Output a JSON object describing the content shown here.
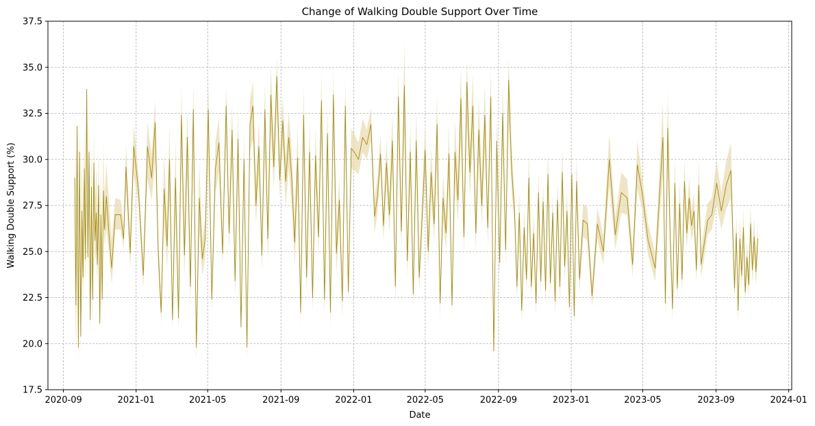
{
  "chart_data": {
    "type": "line",
    "title": "Change of Walking Double Support Over Time",
    "xlabel": "Date",
    "ylabel": "Walking Double Support (%)",
    "xlim": [
      "2020-08-06",
      "2024-01-06"
    ],
    "ylim": [
      17.5,
      37.5
    ],
    "grid": true,
    "line_color": "#a68a0d",
    "band_color": "#e8dcb0",
    "x_ticks": [
      "2020-09-01",
      "2021-01-01",
      "2021-05-01",
      "2021-09-01",
      "2022-01-01",
      "2022-05-01",
      "2022-09-01",
      "2023-01-01",
      "2023-05-01",
      "2023-09-01",
      "2024-01-01"
    ],
    "x_tick_labels": [
      "2020-09",
      "2021-01",
      "2021-05",
      "2021-09",
      "2022-01",
      "2022-05",
      "2022-09",
      "2023-01",
      "2023-05",
      "2023-09",
      "2024-01"
    ],
    "y_ticks": [
      17.5,
      20.0,
      22.5,
      25.0,
      27.5,
      30.0,
      32.5,
      35.0,
      37.5
    ],
    "y_tick_labels": [
      "17.5",
      "20.0",
      "22.5",
      "25.0",
      "27.5",
      "30.0",
      "32.5",
      "35.0",
      "37.5"
    ],
    "series": [
      {
        "x": [
          "2020-09-20",
          "2020-09-22",
          "2020-09-24",
          "2020-09-26",
          "2020-09-28",
          "2020-09-30",
          "2020-10-02",
          "2020-10-04",
          "2020-10-06",
          "2020-10-08",
          "2020-10-10",
          "2020-10-12",
          "2020-10-14",
          "2020-10-16",
          "2020-10-18",
          "2020-10-20",
          "2020-10-22",
          "2020-10-24",
          "2020-10-26",
          "2020-10-28",
          "2020-10-30",
          "2020-11-01",
          "2020-11-03",
          "2020-11-05",
          "2020-11-07",
          "2020-11-09",
          "2020-11-12",
          "2020-11-16",
          "2020-11-21",
          "2020-11-27",
          "2020-12-06",
          "2020-12-11",
          "2020-12-15",
          "2020-12-22",
          "2020-12-28",
          "2021-01-05",
          "2021-01-13",
          "2021-01-20",
          "2021-01-27",
          "2021-02-02",
          "2021-02-07",
          "2021-02-12",
          "2021-02-17",
          "2021-02-22",
          "2021-02-26",
          "2021-03-03",
          "2021-03-08",
          "2021-03-13",
          "2021-03-18",
          "2021-03-23",
          "2021-03-28",
          "2021-04-02",
          "2021-04-07",
          "2021-04-12",
          "2021-04-17",
          "2021-04-22",
          "2021-04-27",
          "2021-05-02",
          "2021-05-08",
          "2021-05-14",
          "2021-05-20",
          "2021-05-26",
          "2021-06-01",
          "2021-06-06",
          "2021-06-11",
          "2021-06-16",
          "2021-06-21",
          "2021-06-26",
          "2021-07-01",
          "2021-07-06",
          "2021-07-11",
          "2021-07-16",
          "2021-07-21",
          "2021-07-26",
          "2021-07-31",
          "2021-08-05",
          "2021-08-10",
          "2021-08-15",
          "2021-08-20",
          "2021-08-25",
          "2021-08-30",
          "2021-09-04",
          "2021-09-09",
          "2021-09-14",
          "2021-09-19",
          "2021-09-24",
          "2021-09-29",
          "2021-10-04",
          "2021-10-09",
          "2021-10-14",
          "2021-10-19",
          "2021-10-24",
          "2021-10-29",
          "2021-11-03",
          "2021-11-08",
          "2021-11-13",
          "2021-11-18",
          "2021-11-23",
          "2021-11-28",
          "2021-12-03",
          "2021-12-08",
          "2021-12-13",
          "2021-12-18",
          "2021-12-23",
          "2021-12-28",
          "2022-01-02",
          "2022-01-09",
          "2022-01-16",
          "2022-01-23",
          "2022-01-30",
          "2022-02-05",
          "2022-02-10",
          "2022-02-15",
          "2022-02-20",
          "2022-02-25",
          "2022-03-02",
          "2022-03-07",
          "2022-03-12",
          "2022-03-17",
          "2022-03-22",
          "2022-03-27",
          "2022-04-01",
          "2022-04-06",
          "2022-04-11",
          "2022-04-16",
          "2022-04-21",
          "2022-04-26",
          "2022-05-01",
          "2022-05-06",
          "2022-05-11",
          "2022-05-16",
          "2022-05-21",
          "2022-05-26",
          "2022-05-31",
          "2022-06-05",
          "2022-06-10",
          "2022-06-15",
          "2022-06-20",
          "2022-06-25",
          "2022-06-30",
          "2022-07-05",
          "2022-07-10",
          "2022-07-15",
          "2022-07-20",
          "2022-07-25",
          "2022-07-30",
          "2022-08-04",
          "2022-08-09",
          "2022-08-14",
          "2022-08-19",
          "2022-08-24",
          "2022-08-29",
          "2022-09-03",
          "2022-09-08",
          "2022-09-13",
          "2022-09-18",
          "2022-09-23",
          "2022-09-28",
          "2022-10-02",
          "2022-10-06",
          "2022-10-10",
          "2022-10-14",
          "2022-10-18",
          "2022-10-22",
          "2022-10-26",
          "2022-10-30",
          "2022-11-03",
          "2022-11-07",
          "2022-11-11",
          "2022-11-15",
          "2022-11-19",
          "2022-11-23",
          "2022-11-27",
          "2022-12-01",
          "2022-12-05",
          "2022-12-09",
          "2022-12-13",
          "2022-12-17",
          "2022-12-21",
          "2022-12-25",
          "2022-12-29",
          "2023-01-02",
          "2023-01-06",
          "2023-01-10",
          "2023-01-15",
          "2023-01-21",
          "2023-01-28",
          "2023-02-05",
          "2023-02-14",
          "2023-02-24",
          "2023-03-06",
          "2023-03-16",
          "2023-03-26",
          "2023-04-05",
          "2023-04-14",
          "2023-04-22",
          "2023-04-30",
          "2023-05-10",
          "2023-05-22",
          "2023-06-04",
          "2023-06-08",
          "2023-06-12",
          "2023-06-16",
          "2023-06-20",
          "2023-06-24",
          "2023-06-28",
          "2023-07-02",
          "2023-07-06",
          "2023-07-10",
          "2023-07-14",
          "2023-07-18",
          "2023-07-22",
          "2023-07-26",
          "2023-07-30",
          "2023-08-03",
          "2023-08-07",
          "2023-08-12",
          "2023-08-18",
          "2023-08-25",
          "2023-09-02",
          "2023-09-10",
          "2023-09-18",
          "2023-09-26",
          "2023-10-02",
          "2023-10-05",
          "2023-10-08",
          "2023-10-11",
          "2023-10-14",
          "2023-10-17",
          "2023-10-20",
          "2023-10-23",
          "2023-10-26",
          "2023-10-29",
          "2023-11-01",
          "2023-11-04",
          "2023-11-07",
          "2023-11-10"
        ],
        "y": [
          29.0,
          22.1,
          31.8,
          19.8,
          30.4,
          20.4,
          27.2,
          23.6,
          29.5,
          24.6,
          33.8,
          24.7,
          30.4,
          21.3,
          28.5,
          22.4,
          29.8,
          25.6,
          27.1,
          24.3,
          28.6,
          21.1,
          27.0,
          22.4,
          28.3,
          26.2,
          28.0,
          26.1,
          24.1,
          27.0,
          27.0,
          25.7,
          29.6,
          24.9,
          30.7,
          28.3,
          23.7,
          30.7,
          29.0,
          32.0,
          25.0,
          21.7,
          28.4,
          25.3,
          30.0,
          21.3,
          29.0,
          21.4,
          32.4,
          24.8,
          31.2,
          23.1,
          32.7,
          19.8,
          27.9,
          24.6,
          25.7,
          32.7,
          22.4,
          29.5,
          30.9,
          24.9,
          32.9,
          26.0,
          31.6,
          23.4,
          31.1,
          20.9,
          30.0,
          19.8,
          31.9,
          32.9,
          27.5,
          30.7,
          24.8,
          32.7,
          25.7,
          33.5,
          29.6,
          34.5,
          28.9,
          32.1,
          28.8,
          31.2,
          29.0,
          25.5,
          30.1,
          21.7,
          32.4,
          23.6,
          30.4,
          22.5,
          30.2,
          25.8,
          33.2,
          22.4,
          31.4,
          21.7,
          33.5,
          24.9,
          27.8,
          22.3,
          32.9,
          22.8,
          30.6,
          30.4,
          30.0,
          31.2,
          30.8,
          31.9,
          26.9,
          28.0,
          30.3,
          26.4,
          29.8,
          27.0,
          31.0,
          23.1,
          33.4,
          26.1,
          34.0,
          24.5,
          30.4,
          22.7,
          31.0,
          23.6,
          27.0,
          30.5,
          25.0,
          29.3,
          26.5,
          31.9,
          22.2,
          27.9,
          26.0,
          30.3,
          22.1,
          30.4,
          27.8,
          33.3,
          25.8,
          34.2,
          29.3,
          32.9,
          26.0,
          31.6,
          27.5,
          32.4,
          26.3,
          33.4,
          19.6,
          31.0,
          24.4,
          32.5,
          25.1,
          34.3,
          29.5,
          27.1,
          23.1,
          27.1,
          21.8,
          26.3,
          23.5,
          29.0,
          23.1,
          26.0,
          22.2,
          28.2,
          23.4,
          27.7,
          22.9,
          29.2,
          23.3,
          27.1,
          22.3,
          27.8,
          23.1,
          29.3,
          24.2,
          27.2,
          22.0,
          29.2,
          21.5,
          28.8,
          23.5,
          26.7,
          26.5,
          22.6,
          26.5,
          25.0,
          30.0,
          25.9,
          28.2,
          27.9,
          24.3,
          29.7,
          28.2,
          25.6,
          24.1,
          31.2,
          22.2,
          31.7,
          25.9,
          21.9,
          28.7,
          23.0,
          27.6,
          23.5,
          28.8,
          26.0,
          27.9,
          26.4,
          27.2,
          24.0,
          28.6,
          24.3,
          25.4,
          26.7,
          27.0,
          28.7,
          27.2,
          28.6,
          29.4,
          23.0,
          26.0,
          21.8,
          25.7,
          23.7,
          26.3,
          22.8,
          24.7,
          23.2,
          26.5,
          24.0,
          25.8,
          23.9,
          25.7
        ],
        "lower": [
          24.9,
          19.1,
          28.0,
          18.9,
          26.8,
          19.5,
          24.3,
          22.4,
          26.2,
          23.2,
          30.0,
          23.5,
          27.4,
          20.4,
          25.8,
          21.0,
          26.9,
          24.4,
          25.0,
          23.1,
          26.3,
          20.8,
          25.5,
          21.6,
          26.6,
          25.3,
          26.3,
          25.0,
          23.2,
          26.2,
          26.2,
          25.1,
          28.4,
          24.1,
          29.2,
          27.5,
          23.0,
          28.9,
          27.8,
          29.9,
          24.1,
          21.1,
          26.6,
          24.1,
          28.0,
          20.7,
          27.0,
          20.6,
          29.9,
          23.6,
          29.1,
          22.1,
          30.3,
          19.1,
          26.1,
          23.7,
          24.7,
          30.5,
          21.7,
          28.2,
          29.3,
          24.2,
          31.1,
          25.1,
          29.8,
          22.6,
          29.2,
          20.4,
          28.5,
          19.1,
          30.4,
          31.1,
          26.5,
          29.2,
          24.0,
          30.5,
          24.5,
          31.6,
          28.4,
          32.6,
          27.9,
          30.8,
          27.4,
          29.6,
          27.5,
          24.3,
          28.3,
          20.9,
          30.2,
          22.7,
          28.6,
          21.8,
          28.6,
          24.8,
          31.0,
          21.5,
          29.2,
          20.9,
          31.2,
          23.8,
          26.6,
          21.4,
          30.7,
          22.0,
          29.5,
          29.4,
          29.2,
          30.4,
          30.0,
          31.0,
          26.0,
          27.1,
          29.4,
          25.6,
          28.7,
          26.0,
          29.5,
          22.3,
          31.2,
          25.1,
          31.6,
          23.6,
          28.8,
          21.9,
          29.1,
          22.8,
          26.0,
          29.0,
          24.1,
          28.0,
          25.5,
          30.0,
          21.4,
          26.7,
          25.1,
          28.6,
          21.4,
          28.8,
          26.6,
          31.1,
          24.8,
          31.9,
          28.0,
          31.0,
          25.0,
          29.9,
          26.4,
          30.6,
          25.3,
          31.4,
          19.0,
          29.6,
          23.5,
          30.7,
          24.2,
          32.1,
          28.4,
          26.3,
          22.4,
          26.1,
          21.1,
          25.4,
          22.8,
          27.6,
          22.4,
          25.1,
          21.5,
          27.0,
          22.6,
          26.7,
          22.1,
          27.8,
          22.6,
          26.1,
          21.6,
          26.8,
          22.3,
          27.9,
          23.4,
          26.1,
          21.3,
          27.9,
          20.9,
          27.6,
          22.8,
          25.8,
          25.6,
          22.0,
          25.7,
          24.3,
          28.6,
          25.1,
          27.1,
          27.0,
          23.6,
          28.4,
          27.3,
          24.8,
          23.4,
          29.3,
          21.5,
          29.6,
          25.0,
          21.2,
          27.3,
          22.3,
          26.4,
          22.8,
          27.5,
          25.2,
          26.8,
          25.6,
          26.3,
          23.3,
          27.3,
          23.6,
          24.6,
          25.9,
          26.2,
          27.6,
          26.2,
          27.3,
          27.9,
          22.4,
          25.1,
          21.1,
          24.8,
          23.0,
          25.3,
          22.1,
          23.9,
          22.5,
          25.5,
          23.3,
          24.9,
          23.1,
          24.8
        ],
        "upper": [
          32.4,
          25.0,
          32.2,
          22.6,
          32.0,
          23.0,
          30.0,
          25.7,
          31.6,
          26.8,
          33.8,
          26.9,
          32.3,
          23.9,
          30.9,
          24.7,
          31.6,
          27.7,
          29.7,
          26.4,
          30.6,
          23.4,
          29.5,
          24.6,
          30.8,
          28.1,
          29.8,
          27.9,
          25.6,
          27.9,
          27.8,
          26.4,
          30.8,
          25.8,
          31.9,
          29.2,
          24.5,
          32.0,
          30.2,
          33.2,
          26.0,
          22.4,
          30.3,
          26.6,
          31.8,
          22.0,
          31.0,
          22.3,
          33.9,
          26.1,
          32.9,
          24.2,
          34.2,
          20.6,
          29.8,
          25.6,
          26.8,
          34.2,
          23.2,
          30.9,
          32.3,
          25.7,
          34.1,
          27.0,
          33.1,
          24.3,
          32.7,
          21.5,
          31.4,
          20.6,
          33.2,
          34.2,
          28.6,
          32.1,
          25.7,
          34.1,
          26.8,
          35.0,
          30.8,
          35.5,
          30.0,
          33.4,
          30.1,
          32.6,
          30.5,
          26.8,
          31.8,
          22.5,
          34.0,
          24.6,
          32.1,
          23.3,
          31.7,
          26.8,
          34.6,
          23.4,
          33.0,
          22.6,
          34.9,
          26.1,
          29.0,
          23.2,
          34.3,
          23.7,
          31.7,
          31.4,
          30.9,
          32.2,
          31.6,
          32.8,
          27.9,
          29.0,
          31.3,
          27.3,
          31.0,
          28.1,
          32.5,
          24.0,
          34.8,
          27.2,
          36.4,
          25.5,
          32.0,
          23.6,
          32.8,
          24.5,
          28.1,
          32.0,
          26.0,
          30.6,
          27.6,
          33.6,
          23.1,
          29.2,
          26.9,
          31.9,
          22.9,
          32.1,
          29.0,
          35.0,
          26.9,
          35.4,
          30.6,
          34.6,
          27.1,
          33.3,
          28.7,
          34.1,
          27.4,
          35.0,
          20.3,
          32.4,
          25.4,
          34.0,
          26.1,
          35.6,
          30.6,
          28.0,
          23.9,
          28.2,
          22.6,
          27.3,
          24.3,
          30.5,
          23.9,
          27.0,
          23.0,
          29.4,
          24.3,
          28.7,
          23.8,
          30.6,
          24.1,
          28.1,
          23.1,
          28.9,
          23.9,
          30.7,
          25.1,
          28.3,
          22.8,
          30.5,
          22.2,
          30.1,
          24.3,
          27.6,
          27.4,
          23.3,
          27.4,
          25.8,
          31.4,
          26.8,
          29.3,
          28.9,
          25.1,
          31.0,
          29.1,
          26.5,
          24.9,
          33.1,
          23.0,
          33.8,
          26.9,
          22.7,
          30.1,
          23.8,
          28.8,
          24.3,
          30.0,
          26.8,
          29.0,
          27.2,
          28.2,
          24.8,
          29.9,
          25.1,
          26.3,
          27.6,
          27.9,
          29.9,
          28.2,
          29.9,
          30.9,
          23.7,
          27.0,
          22.6,
          26.7,
          24.5,
          27.3,
          23.6,
          25.6,
          24.0,
          27.5,
          24.8,
          26.8,
          24.8,
          26.6
        ]
      }
    ]
  }
}
